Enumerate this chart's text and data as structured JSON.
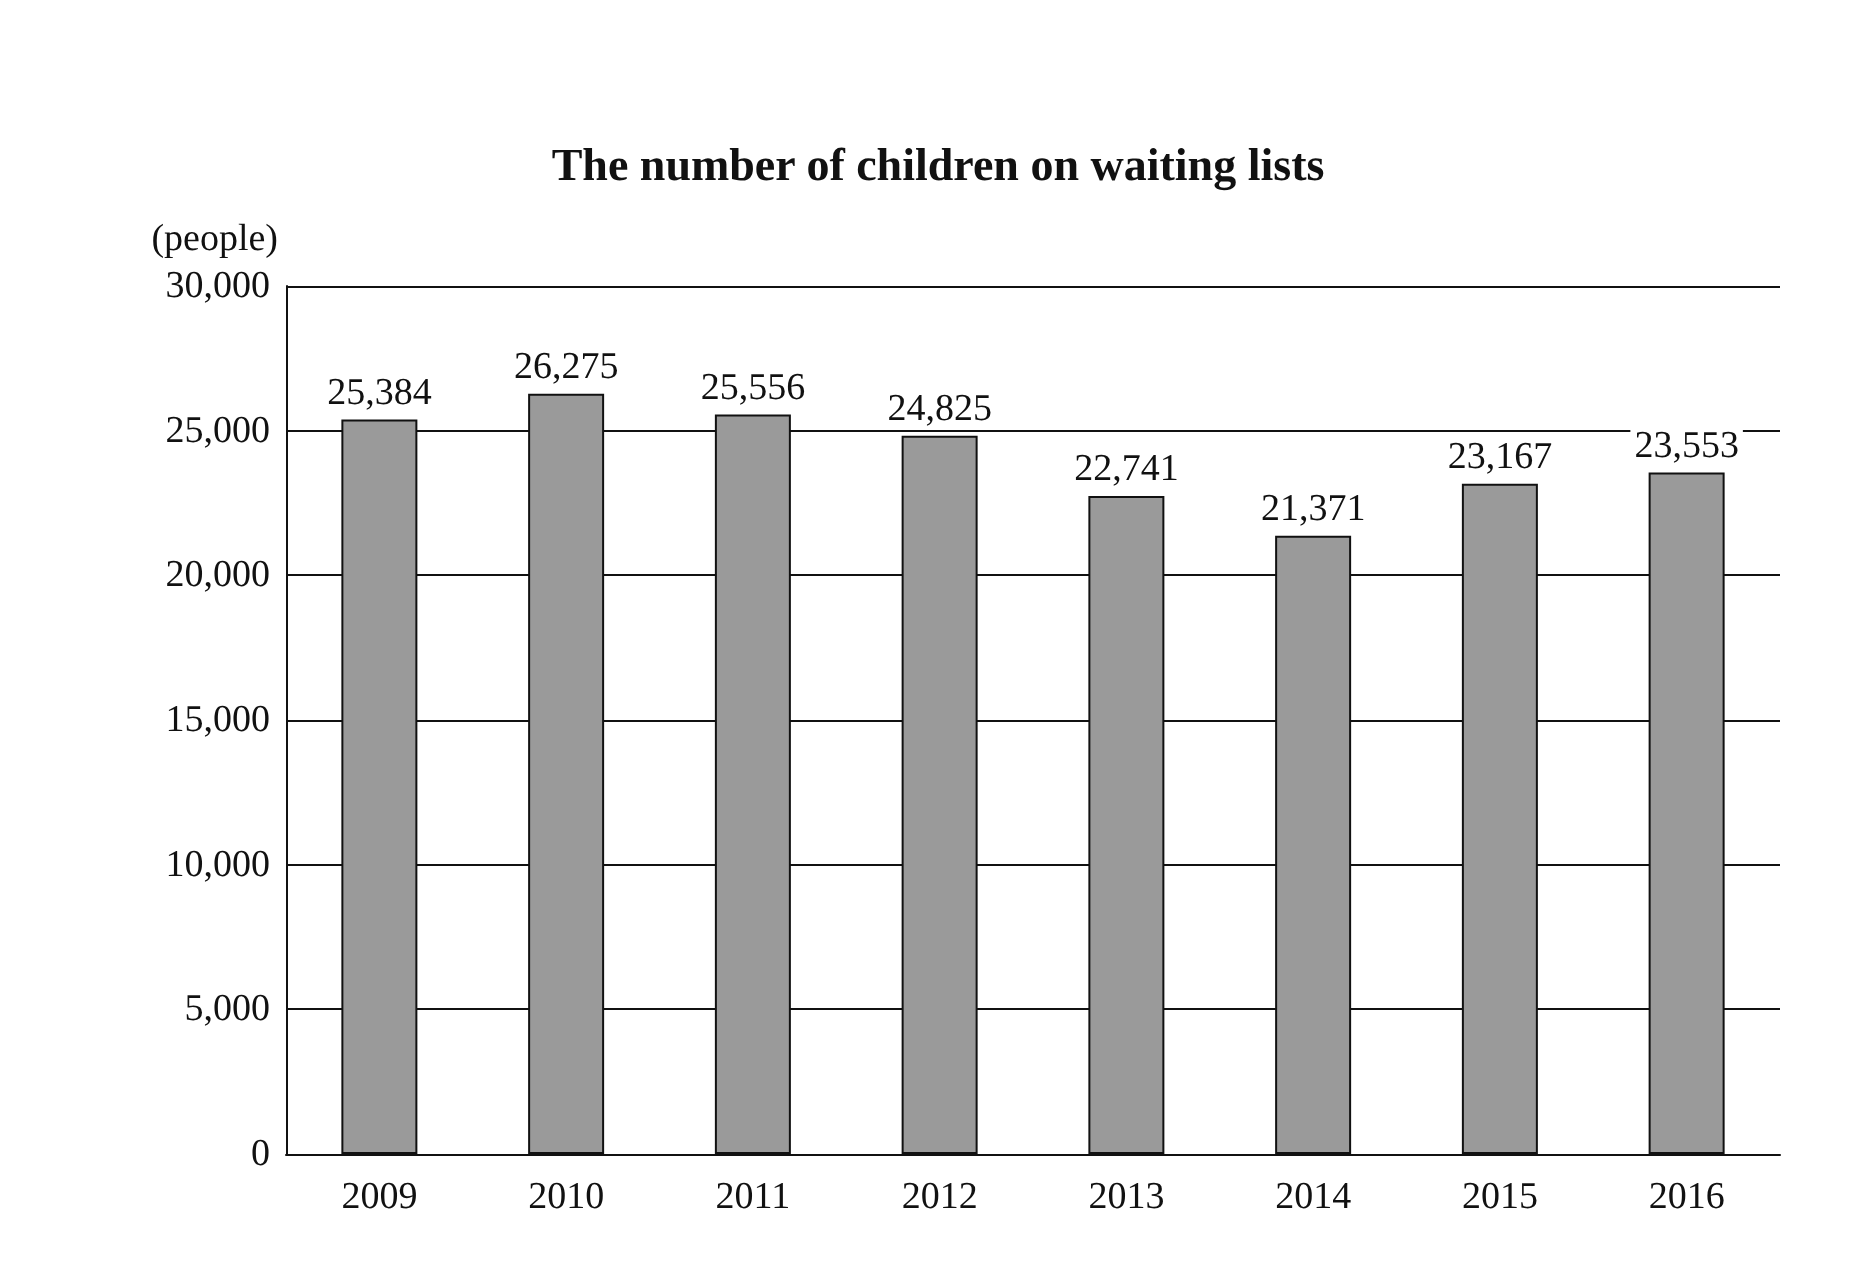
{
  "chart_data": {
    "type": "bar",
    "title": "The number of children on waiting lists",
    "ylabel": "(people)",
    "categories": [
      "2009",
      "2010",
      "2011",
      "2012",
      "2013",
      "2014",
      "2015",
      "2016"
    ],
    "values": [
      25384,
      26275,
      25556,
      24825,
      22741,
      21371,
      23167,
      23553
    ],
    "value_labels": [
      "25,384",
      "26,275",
      "25,556",
      "24,825",
      "22,741",
      "21,371",
      "23,167",
      "23,553"
    ],
    "color": "#9a9a9a",
    "grid": "y",
    "ylim": [
      0,
      30000
    ],
    "yticks": [
      {
        "value": 0,
        "label": "0"
      },
      {
        "value": 5000,
        "label": "5,000"
      },
      {
        "value": 10000,
        "label": "10,000"
      },
      {
        "value": 15000,
        "label": "15,000"
      },
      {
        "value": 20000,
        "label": "20,000"
      },
      {
        "value": 25000,
        "label": "25,000"
      },
      {
        "value": 30000,
        "label": "30,000"
      }
    ]
  }
}
